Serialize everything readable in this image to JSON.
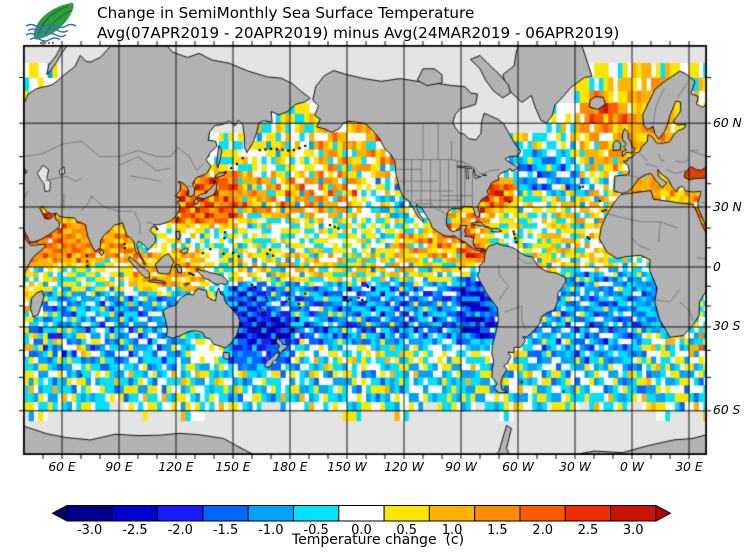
{
  "header": {
    "title_line1": "Change in SemiMonthly Sea Surface Temperature",
    "title_line2": "Avg(07APR2019 - 20APR2019) minus Avg(24MAR2019 - 06APR2019)",
    "logo": {
      "name": "leaf-wave-logo",
      "leaf_color": "#2E9E3E",
      "leaf_dark": "#1C7A2C",
      "wave_color": "#3B6FD0"
    }
  },
  "map": {
    "lon_labels": [
      {
        "text": "60 E",
        "lon": 60
      },
      {
        "text": "90 E",
        "lon": 90
      },
      {
        "text": "120 E",
        "lon": 120
      },
      {
        "text": "150 E",
        "lon": 150
      },
      {
        "text": "180 E",
        "lon": 180
      },
      {
        "text": "150 W",
        "lon": 210
      },
      {
        "text": "120 W",
        "lon": 240
      },
      {
        "text": "90 W",
        "lon": 270
      },
      {
        "text": "60 W",
        "lon": 300
      },
      {
        "text": "30 W",
        "lon": 330
      },
      {
        "text": "0 W",
        "lon": 360
      },
      {
        "text": "30 E",
        "lon": 390
      }
    ],
    "lat_labels": [
      {
        "text": "60 N",
        "lat": 60
      },
      {
        "text": "30 N",
        "lat": 30
      },
      {
        "text": "0",
        "lat": 0
      },
      {
        "text": "30 S",
        "lat": -30
      },
      {
        "text": "60 S",
        "lat": -60
      }
    ],
    "extent": {
      "lon_min": 40,
      "lon_max": 400,
      "lat_min": -70,
      "lat_max": 75.2
    },
    "grid_step_deg": 30,
    "tick_step_deg": 10,
    "land_color": "#B2B2B2",
    "no_data_color": "#E4E4E4",
    "ocean_color": "#FFFFFF",
    "coast_color": "#000000",
    "border_color": "#5E5E5E",
    "grid_color": "#000000"
  },
  "colorbar": {
    "tick_labels": [
      "-3.0",
      "-2.5",
      "-2.0",
      "-1.5",
      "-1.0",
      "-0.5",
      "0.0",
      "0.5",
      "1.0",
      "1.5",
      "2.0",
      "2.5",
      "3.0"
    ],
    "colors": [
      "#00008B",
      "#0000CD",
      "#1A1AFF",
      "#0066FF",
      "#00A2FF",
      "#00E0FF",
      "#FFFFFF",
      "#FFE600",
      "#FFB200",
      "#FF8C00",
      "#FF5A00",
      "#EE2E00",
      "#C81400"
    ],
    "left_arrow_color": "#000066",
    "right_arrow_color": "#C00000",
    "caption": "Temperature change  (c)"
  },
  "chart_data": {
    "type": "heatmap",
    "title": "Change in SemiMonthly Sea Surface Temperature",
    "subtitle": "Avg(07APR2019 - 20APR2019) minus Avg(24MAR2019 - 06APR2019)",
    "units": "degrees C (semimonthly SST difference)",
    "scale": {
      "min": -3.0,
      "max": 3.0,
      "step": 0.5
    },
    "projection": "mercator, Pacific-centered, approx 40E-400E, 70S-75N",
    "anomaly_regions": [
      {
        "name": "arabian-sea-warm",
        "lon": [
          42,
          78
        ],
        "lat": [
          2,
          26
        ],
        "value": 1.4,
        "streak": 0.7
      },
      {
        "name": "bay-of-bengal-warm",
        "lon": [
          78,
          100
        ],
        "lat": [
          4,
          22
        ],
        "value": 1.1,
        "streak": 0.5
      },
      {
        "name": "maritime-continent-warm",
        "lon": [
          95,
          135
        ],
        "lat": [
          -12,
          8
        ],
        "value": 0.8,
        "streak": 0.5
      },
      {
        "name": "kuroshio-japan-warm",
        "lon": [
          117,
          152
        ],
        "lat": [
          22,
          44
        ],
        "value": 1.9,
        "streak": 0.8,
        "noise": 0.5
      },
      {
        "name": "north-pacific-band-warm",
        "lon": [
          150,
          216
        ],
        "lat": [
          26,
          44
        ],
        "value": 0.7,
        "streak": 1.5
      },
      {
        "name": "gulf-of-alaska-warm",
        "lon": [
          196,
          236
        ],
        "lat": [
          44,
          59
        ],
        "value": 0.65,
        "streak": 1.3
      },
      {
        "name": "bering-sea-neutral",
        "lon": [
          170,
          200
        ],
        "lat": [
          50,
          64
        ],
        "value": 0.2,
        "streak": 0.4
      },
      {
        "name": "california-coast-mixed",
        "lon": [
          226,
          244
        ],
        "lat": [
          24,
          45
        ],
        "value": -0.2,
        "streak": 0.8
      },
      {
        "name": "equatorial-pacific-neutral",
        "lon": [
          150,
          270
        ],
        "lat": [
          -6,
          8
        ],
        "value": 0.25,
        "streak": 0.9
      },
      {
        "name": "south-pacific-cool",
        "lon": [
          150,
          287
        ],
        "lat": [
          -38,
          -8
        ],
        "value": -1.0,
        "streak": 0.9
      },
      {
        "name": "tasman-newzealand-cool",
        "lon": [
          147,
          181
        ],
        "lat": [
          -46,
          -24
        ],
        "value": -1.3,
        "streak": 0.5
      },
      {
        "name": "coral-sea-cool",
        "lon": [
          142,
          166
        ],
        "lat": [
          -24,
          -10
        ],
        "value": -0.9
      },
      {
        "name": "south-indian-cool",
        "lon": [
          42,
          125
        ],
        "lat": [
          -46,
          -12
        ],
        "value": -0.75,
        "streak": 0.8
      },
      {
        "name": "mozambique-channel-warm",
        "lon": [
          40,
          48
        ],
        "lat": [
          -26,
          -11
        ],
        "value": 1.0
      },
      {
        "name": "south-indian-eddies",
        "lon": [
          48,
          80
        ],
        "lat": [
          -43,
          -33
        ],
        "value": 0.3,
        "noise": 1.6
      },
      {
        "name": "agulhas-eddies",
        "lon": [
          378,
          400
        ],
        "lat": [
          -41,
          -32
        ],
        "value": 0.1,
        "noise": 2.3
      },
      {
        "name": "agulhas-eddies-east",
        "lon": [
          40,
          46
        ],
        "lat": [
          -41,
          -33
        ],
        "value": 0.1,
        "noise": 2.0
      },
      {
        "name": "peru-chile-cool",
        "lon": [
          268,
          292
        ],
        "lat": [
          -36,
          -4
        ],
        "value": -0.9,
        "streak": 0.7
      },
      {
        "name": "panama-warm-spot",
        "lon": [
          272,
          284
        ],
        "lat": [
          3,
          12
        ],
        "value": 2.3
      },
      {
        "name": "east-pacific-warm-band",
        "lon": [
          235,
          276
        ],
        "lat": [
          6,
          18
        ],
        "value": 0.8,
        "streak": 1.1
      },
      {
        "name": "gulf-mexico-caribbean-warm",
        "lon": [
          258,
          286
        ],
        "lat": [
          14,
          30
        ],
        "value": 1.0,
        "streak": 0.6,
        "noise": 0.8
      },
      {
        "name": "gulf-stream-warm",
        "lon": [
          278,
          298
        ],
        "lat": [
          30,
          43
        ],
        "value": 1.8,
        "noise": 1.2
      },
      {
        "name": "north-atlantic-central-cool",
        "lon": [
          298,
          336
        ],
        "lat": [
          36,
          52
        ],
        "value": -0.85,
        "streak": 0.9
      },
      {
        "name": "subtropical-atlantic-mixed",
        "lon": [
          318,
          356
        ],
        "lat": [
          20,
          38
        ],
        "value": 0.3,
        "streak": 0.9
      },
      {
        "name": "tropical-atlantic-neutral",
        "lon": [
          308,
          352
        ],
        "lat": [
          -2,
          18
        ],
        "value": 0.25,
        "streak": 0.6
      },
      {
        "name": "south-atlantic-cool",
        "lon": [
          305,
          366
        ],
        "lat": [
          -45,
          -2
        ],
        "value": -0.85,
        "streak": 0.8
      },
      {
        "name": "benguela-cool",
        "lon": [
          366,
          382
        ],
        "lat": [
          -32,
          -6
        ],
        "value": -1.1
      },
      {
        "name": "northeast-atlantic-warm",
        "lon": [
          330,
          358
        ],
        "lat": [
          44,
          64
        ],
        "value": 0.7,
        "streak": 0.9
      },
      {
        "name": "iceland-warm",
        "lon": [
          334,
          352
        ],
        "lat": [
          60,
          67
        ],
        "value": 1.4
      },
      {
        "name": "norwegian-baltic-warm",
        "lon": [
          355,
          383
        ],
        "lat": [
          50,
          71
        ],
        "value": 0.9
      },
      {
        "name": "mediterranean-warm",
        "lon": [
          356,
          397
        ],
        "lat": [
          30,
          45
        ],
        "value": 0.8,
        "noise": 0.6
      },
      {
        "name": "black-sea-warm",
        "lon": [
          386,
          400
        ],
        "lat": [
          40,
          47
        ],
        "value": 2.3
      },
      {
        "name": "red-sea-warm",
        "lon": [
          392,
          400
        ],
        "lat": [
          13,
          29
        ],
        "value": 1.8
      },
      {
        "name": "red-sea-warm-west-sliver",
        "lon": [
          40,
          44
        ],
        "lat": [
          11,
          27
        ],
        "value": 1.5
      },
      {
        "name": "persian-gulf-warm",
        "lon": [
          47,
          57
        ],
        "lat": [
          23,
          29
        ],
        "value": 1.6
      },
      {
        "name": "southern-ocean-mixed",
        "lon": [
          40,
          400
        ],
        "lat": [
          -58,
          -45
        ],
        "value": -0.35,
        "streak": 0.7
      }
    ],
    "no_data_regions": [
      {
        "name": "arctic-ocean",
        "lat_above": 65.6,
        "except_real_lon": [
          -31,
          60
        ],
        "hard_lat_above": 71.8
      },
      {
        "name": "hudson-bay",
        "real_lon": [
          -96,
          -76
        ],
        "lat": [
          50.5,
          66
        ]
      },
      {
        "name": "baffin-bay-labrador",
        "real_lon": [
          -82,
          -44
        ],
        "lat_above": 57
      },
      {
        "name": "okhotsk-north",
        "real_lon": [
          134,
          160
        ],
        "lat_above": 57.5
      },
      {
        "name": "antarctic-sea-ice",
        "lat_below": -60.2
      },
      {
        "name": "weddell-sea-ice",
        "real_lon": [
          -62,
          -14
        ],
        "lat_below": -61.2
      }
    ]
  }
}
